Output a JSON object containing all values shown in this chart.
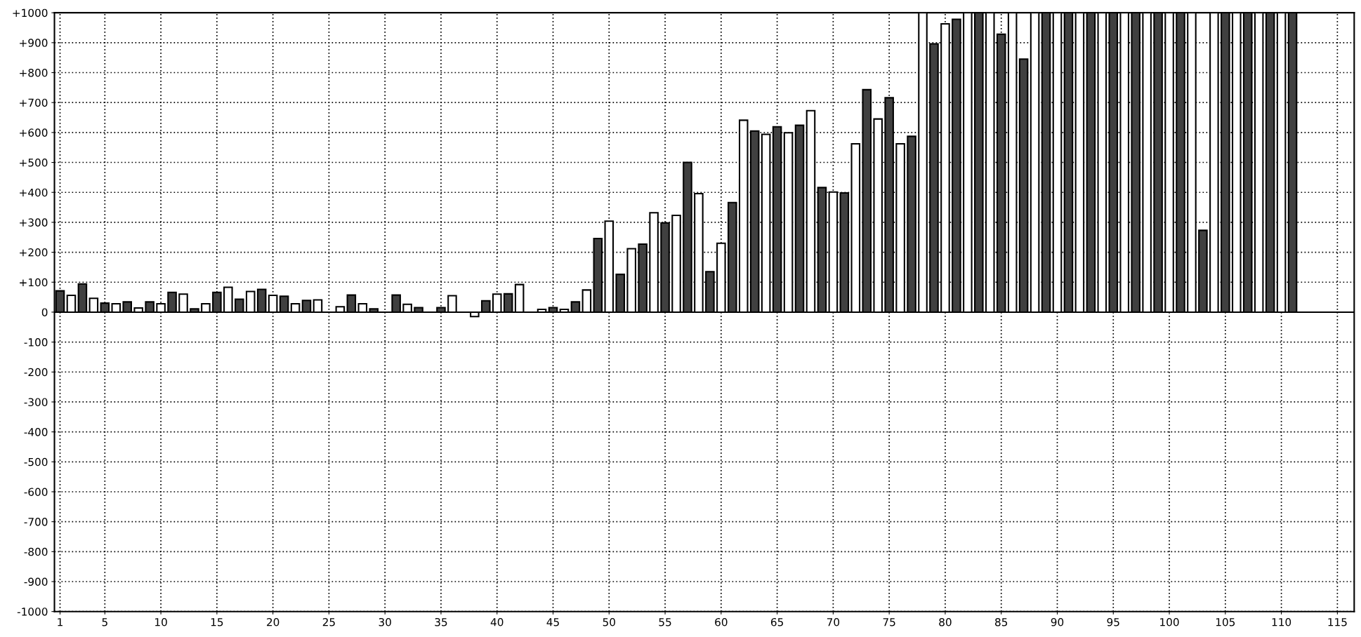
{
  "chart_data": {
    "type": "bar",
    "x": [
      1,
      2,
      3,
      4,
      5,
      6,
      7,
      8,
      9,
      10,
      11,
      12,
      13,
      14,
      15,
      16,
      17,
      18,
      19,
      20,
      21,
      22,
      23,
      24,
      25,
      26,
      27,
      28,
      29,
      30,
      31,
      32,
      33,
      34,
      35,
      36,
      37,
      38,
      39,
      40,
      41,
      42,
      43,
      44,
      45,
      46,
      47,
      48,
      49,
      50,
      51,
      52,
      53,
      54,
      55,
      56,
      57,
      58,
      59,
      60,
      61,
      62,
      63,
      64,
      65,
      66,
      67,
      68,
      69,
      70,
      71,
      72,
      73,
      74,
      75,
      76,
      77,
      78,
      79,
      80,
      81,
      82,
      83,
      84,
      85,
      86,
      87,
      88,
      89,
      90,
      91,
      92,
      93,
      94,
      95,
      96,
      97,
      98,
      99,
      100,
      101,
      102,
      103,
      104,
      105,
      106,
      107,
      108,
      109,
      110,
      111
    ],
    "values": [
      71,
      56,
      94,
      46,
      30,
      28,
      34,
      14,
      34,
      28,
      66,
      60,
      11,
      28,
      66,
      83,
      43,
      69,
      76,
      56,
      53,
      28,
      39,
      41,
      0,
      18,
      57,
      28,
      11,
      0,
      57,
      26,
      15,
      0,
      15,
      55,
      0,
      -15,
      38,
      60,
      61,
      92,
      0,
      9,
      15,
      9,
      34,
      74,
      246,
      304,
      126,
      212,
      227,
      332,
      298,
      323,
      500,
      396,
      135,
      230,
      366,
      641,
      605,
      594,
      619,
      599,
      624,
      673,
      416,
      401,
      398,
      562,
      743,
      645,
      716,
      562,
      587,
      1000,
      896,
      963,
      978,
      1000,
      1000,
      1000,
      928,
      1000,
      845,
      1000,
      1000,
      1000,
      1000,
      1000,
      1000,
      1000,
      1000,
      1000,
      1000,
      1000,
      1000,
      1000,
      1000,
      1000,
      273,
      1000,
      1000,
      1000,
      1000,
      1000,
      1000,
      1000,
      1000
    ],
    "colors": [
      "#404040",
      "#ffffff",
      "#404040",
      "#ffffff",
      "#404040",
      "#ffffff",
      "#404040",
      "#ffffff",
      "#404040",
      "#ffffff",
      "#404040",
      "#ffffff",
      "#404040",
      "#ffffff",
      "#404040",
      "#ffffff",
      "#404040",
      "#ffffff",
      "#404040",
      "#ffffff",
      "#404040",
      "#ffffff",
      "#404040",
      "#ffffff",
      "#404040",
      "#ffffff",
      "#404040",
      "#ffffff",
      "#404040",
      "#ffffff",
      "#404040",
      "#ffffff",
      "#404040",
      "#ffffff",
      "#404040",
      "#ffffff",
      "#404040",
      "#ffffff",
      "#404040",
      "#ffffff",
      "#404040",
      "#ffffff",
      "#404040",
      "#ffffff",
      "#404040",
      "#ffffff",
      "#404040",
      "#ffffff",
      "#404040",
      "#ffffff",
      "#404040",
      "#ffffff",
      "#404040",
      "#ffffff",
      "#404040",
      "#ffffff",
      "#404040",
      "#ffffff",
      "#404040",
      "#ffffff",
      "#404040",
      "#ffffff",
      "#404040",
      "#ffffff",
      "#404040",
      "#ffffff",
      "#404040",
      "#ffffff",
      "#404040",
      "#ffffff",
      "#404040",
      "#ffffff",
      "#404040",
      "#ffffff",
      "#404040",
      "#ffffff",
      "#404040",
      "#ffffff",
      "#404040",
      "#ffffff",
      "#404040",
      "#ffffff",
      "#404040",
      "#ffffff",
      "#404040",
      "#ffffff",
      "#404040",
      "#ffffff",
      "#404040",
      "#ffffff",
      "#404040",
      "#ffffff",
      "#404040",
      "#ffffff",
      "#404040",
      "#ffffff",
      "#404040",
      "#ffffff",
      "#404040",
      "#ffffff",
      "#404040",
      "#ffffff",
      "#404040",
      "#ffffff",
      "#404040",
      "#ffffff",
      "#404040",
      "#ffffff",
      "#404040",
      "#ffffff",
      "#404040"
    ],
    "xlim": [
      0.5,
      116.5
    ],
    "xticks": [
      1,
      5,
      10,
      15,
      20,
      25,
      30,
      35,
      40,
      45,
      50,
      55,
      60,
      65,
      70,
      75,
      80,
      85,
      90,
      95,
      100,
      105,
      110,
      115
    ],
    "ylim": [
      -1000,
      1000
    ],
    "yticks": [
      {
        "value": -1000,
        "label": "-1000"
      },
      {
        "value": -900,
        "label": "-900"
      },
      {
        "value": -800,
        "label": "-800"
      },
      {
        "value": -700,
        "label": "-700"
      },
      {
        "value": -600,
        "label": "-600"
      },
      {
        "value": -500,
        "label": "-500"
      },
      {
        "value": -400,
        "label": "-400"
      },
      {
        "value": -300,
        "label": "-300"
      },
      {
        "value": -200,
        "label": "-200"
      },
      {
        "value": -100,
        "label": "-100"
      },
      0,
      {
        "value": 100,
        "label": "+100"
      },
      {
        "value": 200,
        "label": "+200"
      },
      {
        "value": 300,
        "label": "+300"
      },
      {
        "value": 400,
        "label": "+400"
      },
      {
        "value": 500,
        "label": "+500"
      },
      {
        "value": 600,
        "label": "+600"
      },
      {
        "value": 700,
        "label": "+700"
      },
      {
        "value": 800,
        "label": "+800"
      },
      {
        "value": 900,
        "label": "+900"
      },
      {
        "value": 1000,
        "label": "+1000"
      }
    ],
    "grid": true
  }
}
